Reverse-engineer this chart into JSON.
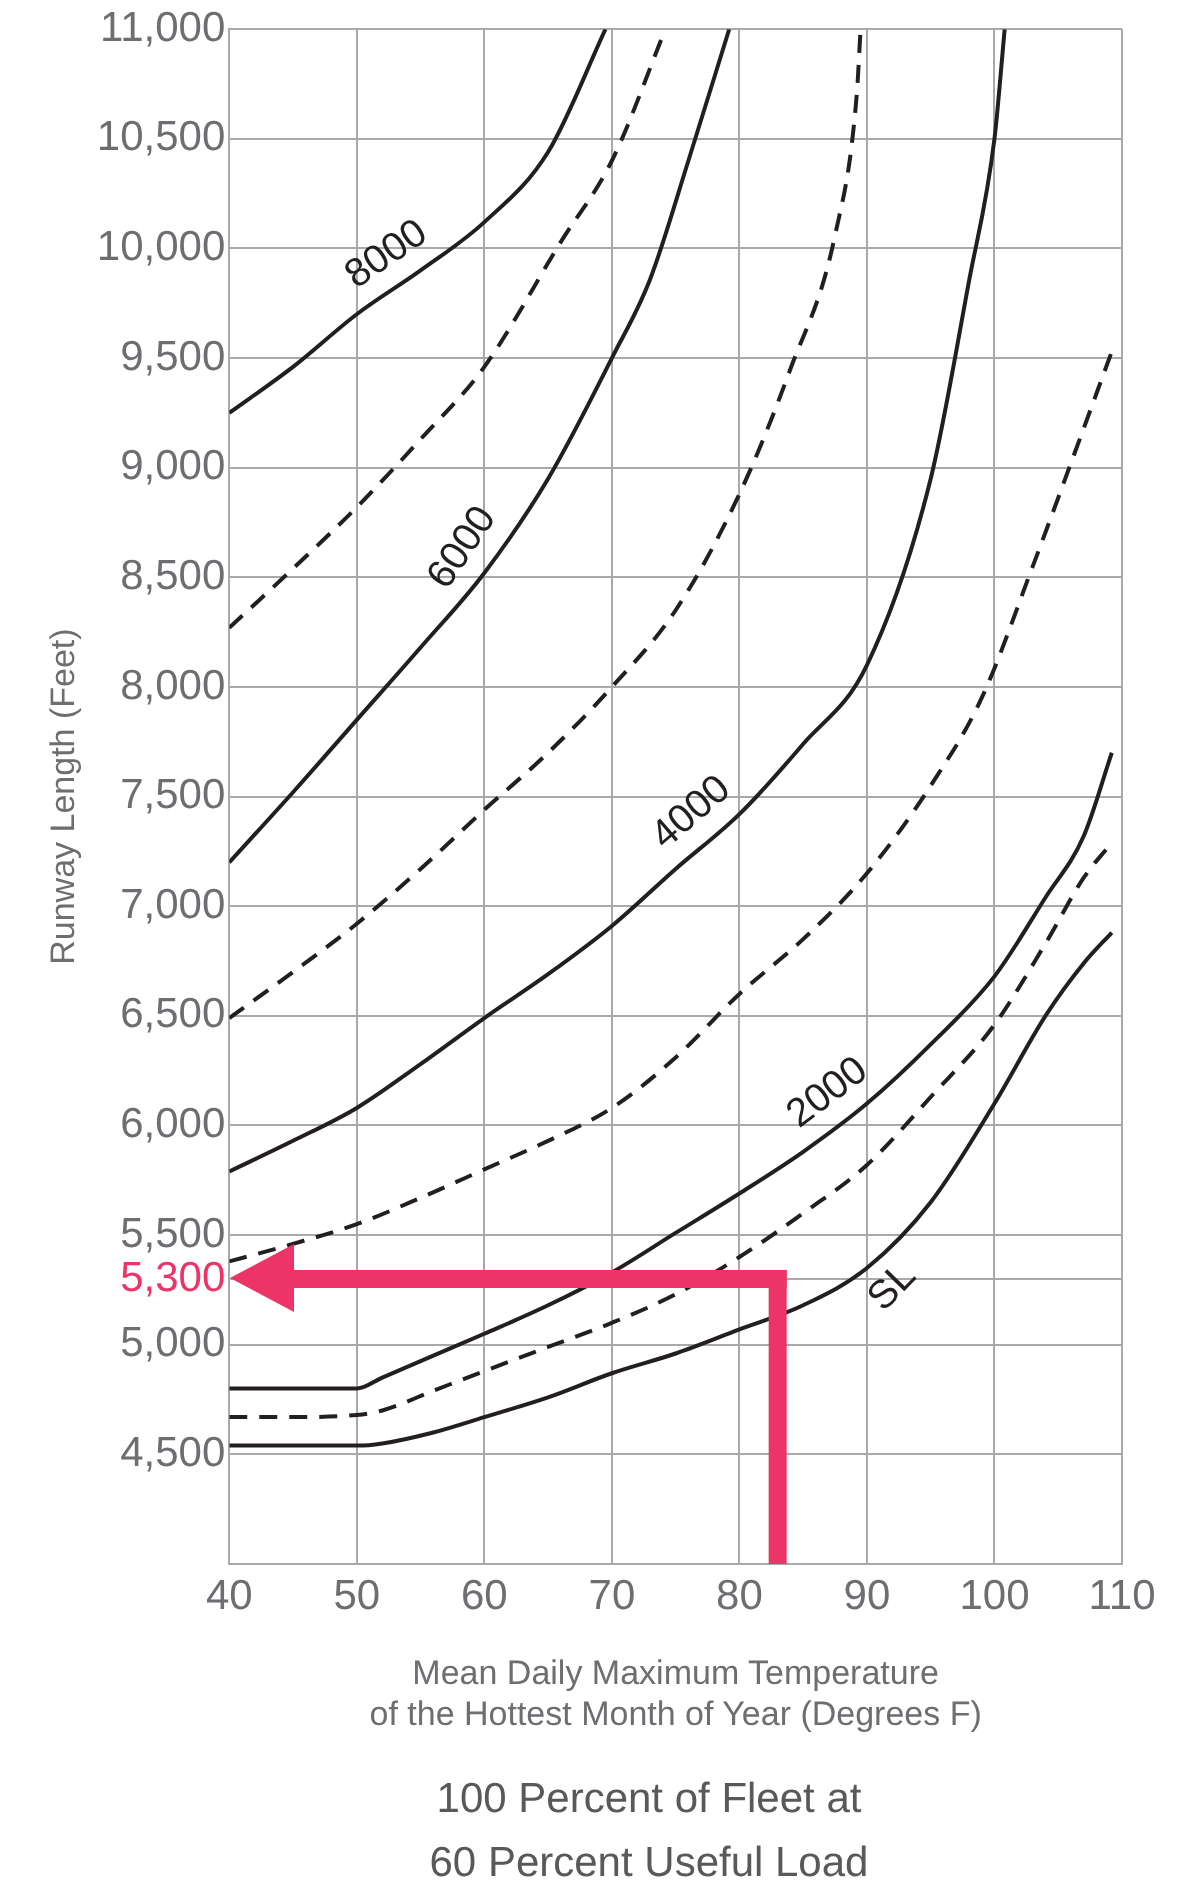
{
  "chart_data": {
    "type": "line",
    "title": "100 Percent of Fleet at\n60 Percent Useful Load",
    "xlabel": "Mean Daily Maximum Temperature\nof the Hottest Month of Year (Degrees F)",
    "ylabel": "Runway Length (Feet)",
    "xlim": [
      40,
      110
    ],
    "xticks": [
      40,
      50,
      60,
      70,
      80,
      90,
      100,
      110
    ],
    "ylim": [
      4000,
      11000
    ],
    "yticks": [
      {
        "value": 4500,
        "label": "4,500"
      },
      {
        "value": 5000,
        "label": "5,000"
      },
      {
        "value": 5300,
        "label": "5,300"
      },
      {
        "value": 5500,
        "label": "5,500"
      },
      {
        "value": 6000,
        "label": "6,000"
      },
      {
        "value": 6500,
        "label": "6,500"
      },
      {
        "value": 7000,
        "label": "7,000"
      },
      {
        "value": 7500,
        "label": "7,500"
      },
      {
        "value": 8000,
        "label": "8,000"
      },
      {
        "value": 8500,
        "label": "8,500"
      },
      {
        "value": 9000,
        "label": "9,000"
      },
      {
        "value": 9500,
        "label": "9,500"
      },
      {
        "value": 10000,
        "label": "10,000"
      },
      {
        "value": 10500,
        "label": "10,500"
      },
      {
        "value": 11000,
        "label": "11,000"
      }
    ],
    "grid": true,
    "marker": "none",
    "series": [
      {
        "name": "8000",
        "color": "#231f20",
        "line_style": "solid",
        "x": [
          40,
          45,
          50,
          55,
          60,
          65,
          69.5
        ],
        "values": [
          9250,
          9460,
          9700,
          9900,
          10120,
          10440,
          11000
        ]
      },
      {
        "color": "#231f20",
        "line_style": "dashed",
        "x": [
          40,
          45,
          50,
          55,
          60,
          66,
          70,
          74.2
        ],
        "values": [
          8270,
          8540,
          8820,
          9130,
          9460,
          10030,
          10400,
          11000
        ]
      },
      {
        "name": "6000",
        "color": "#231f20",
        "line_style": "solid",
        "x": [
          40,
          45,
          50,
          55,
          60,
          65,
          70,
          73,
          76,
          79.2
        ],
        "values": [
          7200,
          7520,
          7850,
          8180,
          8520,
          8950,
          9500,
          9860,
          10400,
          11000
        ]
      },
      {
        "color": "#231f20",
        "line_style": "dashed",
        "x": [
          40,
          45,
          50,
          55,
          60,
          65,
          70,
          75,
          80,
          84,
          87.5,
          89.2,
          89.5
        ],
        "values": [
          6490,
          6700,
          6920,
          7170,
          7440,
          7700,
          8000,
          8350,
          8880,
          9450,
          10060,
          10700,
          11000
        ]
      },
      {
        "name": "4000",
        "color": "#231f20",
        "line_style": "solid",
        "x": [
          40,
          45,
          50,
          55,
          60,
          65,
          70,
          75,
          80,
          85,
          90,
          95,
          98,
          100,
          100.8
        ],
        "values": [
          5790,
          5930,
          6080,
          6280,
          6490,
          6690,
          6910,
          7170,
          7420,
          7740,
          8100,
          8950,
          9850,
          10500,
          11000
        ]
      },
      {
        "color": "#231f20",
        "line_style": "dashed",
        "x": [
          40,
          45,
          50,
          55,
          60,
          65,
          70,
          75,
          80,
          85,
          90,
          95,
          99,
          103,
          107,
          109.2
        ],
        "values": [
          5380,
          5460,
          5550,
          5670,
          5800,
          5930,
          6080,
          6310,
          6600,
          6850,
          7150,
          7550,
          7950,
          8550,
          9180,
          9530
        ]
      },
      {
        "name": "2000",
        "color": "#231f20",
        "line_style": "solid",
        "x": [
          40,
          45,
          50,
          52,
          56,
          60,
          65,
          70,
          75,
          80,
          85,
          90,
          95,
          100,
          104,
          107,
          109.2
        ],
        "values": [
          4800,
          4800,
          4800,
          4850,
          4950,
          5050,
          5180,
          5330,
          5510,
          5690,
          5880,
          6100,
          6370,
          6680,
          7040,
          7320,
          7700
        ]
      },
      {
        "color": "#231f20",
        "line_style": "dashed",
        "x": [
          40,
          45,
          50,
          52,
          56,
          60,
          65,
          70,
          75,
          80,
          85,
          90,
          95,
          100,
          104,
          107,
          109.2
        ],
        "values": [
          4670,
          4670,
          4680,
          4700,
          4790,
          4880,
          4990,
          5100,
          5230,
          5400,
          5600,
          5820,
          6130,
          6460,
          6830,
          7130,
          7290
        ]
      },
      {
        "name": "SL",
        "color": "#231f20",
        "line_style": "solid",
        "x": [
          40,
          45,
          50,
          52,
          56,
          60,
          65,
          70,
          75,
          80,
          85,
          90,
          95,
          100,
          104,
          107,
          109.2
        ],
        "values": [
          4540,
          4540,
          4540,
          4550,
          4600,
          4670,
          4760,
          4870,
          4960,
          5070,
          5180,
          5350,
          5650,
          6100,
          6500,
          6740,
          6880
        ]
      }
    ],
    "ref_lines": [
      {
        "axis": "x",
        "value": 83,
        "color": "#ec3466"
      },
      {
        "axis": "y",
        "value": 5300,
        "color": "#ec3466"
      }
    ]
  }
}
